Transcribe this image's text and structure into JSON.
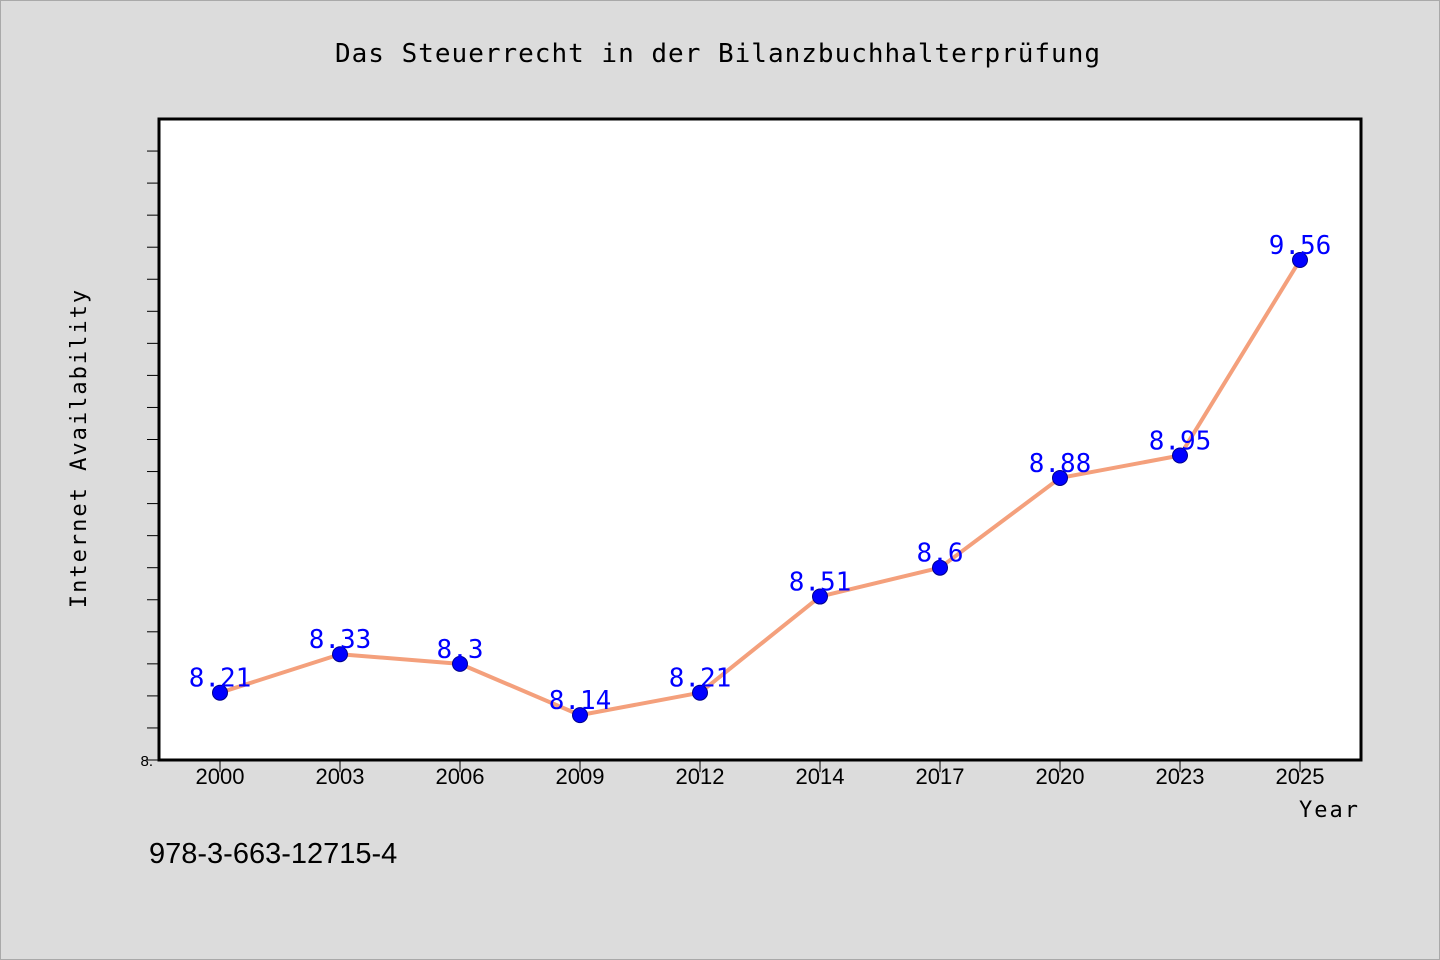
{
  "chart_data": {
    "type": "line",
    "title": "Das Steuerrecht in der Bilanzbuchhalterprüfung",
    "xlabel": "Year",
    "ylabel": "Internet Availability",
    "categories": [
      "2000",
      "2003",
      "2006",
      "2009",
      "2012",
      "2014",
      "2017",
      "2020",
      "2023",
      "2025"
    ],
    "series": [
      {
        "values": [
          8.21,
          8.33,
          8.3,
          8.14,
          8.21,
          8.51,
          8.6,
          8.88,
          8.95,
          9.56
        ],
        "labels": [
          "8.21",
          "8.33",
          "8.3",
          "8.14",
          "8.21",
          "8.51",
          "8.6",
          "8.88",
          "8.95",
          "9.56"
        ]
      }
    ],
    "ylim": [
      8.0,
      10.0
    ],
    "y_tick_labels": [
      "8."
    ],
    "grid": false,
    "line_color": "#f4a07c",
    "marker_color": "#0000ff",
    "label_color": "#0000ff",
    "background_color": "#dcdcdc",
    "plot_background": "#ffffff"
  },
  "footer": {
    "text": "978-3-663-12715-4"
  }
}
